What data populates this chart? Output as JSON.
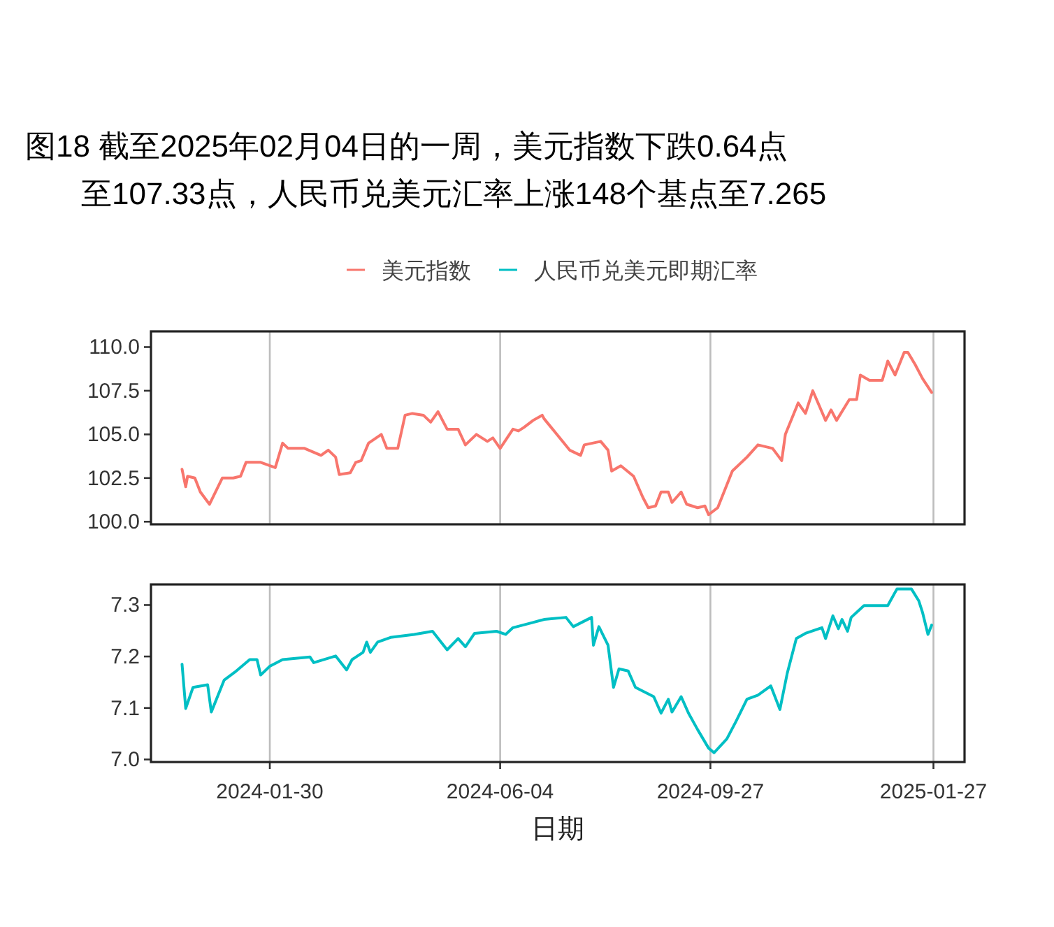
{
  "chart_data": [
    {
      "type": "line",
      "title": "图18  截至2025年02月04日的一周，美元指数下跌0.64点",
      "subtitle": "至107.33点，人民币兑美元汇率上涨148个基点至7.265",
      "legend": "top",
      "grid": "x",
      "tick_labels": "y",
      "xlim": [
        "2023-11-26",
        "2025-02-13"
      ],
      "xticks": [
        "2024-01-30",
        "2024-06-04",
        "2024-09-27",
        "2025-01-27"
      ],
      "ylim": [
        99.85,
        110.9
      ],
      "yticks": [
        {
          "value": 100,
          "label": "100.0"
        },
        102.5,
        {
          "value": 105,
          "label": "105.0"
        },
        107.5,
        {
          "value": 110,
          "label": "110.0"
        }
      ],
      "series": [
        {
          "name": "美元指数",
          "color": "#f8766d",
          "x": [
            "2023-12-13",
            "2023-12-15",
            "2023-12-16",
            "2023-12-20",
            "2023-12-23",
            "2023-12-28",
            "2024-01-04",
            "2024-01-10",
            "2024-01-14",
            "2024-01-17",
            "2024-01-25",
            "2024-02-02",
            "2024-02-06",
            "2024-02-09",
            "2024-02-18",
            "2024-02-27",
            "2024-03-02",
            "2024-03-06",
            "2024-03-08",
            "2024-03-14",
            "2024-03-17",
            "2024-03-20",
            "2024-03-24",
            "2024-03-31",
            "2024-04-03",
            "2024-04-09",
            "2024-04-13",
            "2024-04-17",
            "2024-04-23",
            "2024-04-27",
            "2024-05-01",
            "2024-05-06",
            "2024-05-12",
            "2024-05-16",
            "2024-05-22",
            "2024-05-28",
            "2024-05-31",
            "2024-06-04",
            "2024-06-11",
            "2024-06-14",
            "2024-06-17",
            "2024-06-22",
            "2024-06-27",
            "2024-06-28",
            "2024-07-05",
            "2024-07-12",
            "2024-07-18",
            "2024-07-20",
            "2024-07-29",
            "2024-08-02",
            "2024-08-04",
            "2024-08-09",
            "2024-08-16",
            "2024-08-21",
            "2024-08-24",
            "2024-08-28",
            "2024-08-31",
            "2024-09-04",
            "2024-09-06",
            "2024-09-11",
            "2024-09-14",
            "2024-09-20",
            "2024-09-24",
            "2024-09-26",
            "2024-10-01",
            "2024-10-09",
            "2024-10-17",
            "2024-10-23",
            "2024-10-31",
            "2024-11-05",
            "2024-11-07",
            "2024-11-14",
            "2024-11-18",
            "2024-11-22",
            "2024-11-29",
            "2024-12-02",
            "2024-12-05",
            "2024-12-12",
            "2024-12-16",
            "2024-12-18",
            "2024-12-23",
            "2024-12-30",
            "2025-01-02",
            "2025-01-06",
            "2025-01-11",
            "2025-01-13",
            "2025-01-17",
            "2025-01-21",
            "2025-01-26"
          ],
          "values": [
            103.0,
            102.0,
            102.6,
            102.5,
            101.7,
            101.0,
            102.5,
            102.5,
            102.6,
            103.4,
            103.4,
            103.1,
            104.5,
            104.2,
            104.2,
            103.8,
            104.1,
            103.7,
            102.7,
            102.8,
            103.4,
            103.5,
            104.5,
            105.0,
            104.2,
            104.2,
            106.1,
            106.2,
            106.1,
            105.7,
            106.3,
            105.3,
            105.3,
            104.4,
            105.0,
            104.6,
            104.8,
            104.2,
            105.3,
            105.2,
            105.4,
            105.8,
            106.1,
            105.9,
            105.0,
            104.1,
            103.8,
            104.4,
            104.6,
            104.1,
            102.9,
            103.2,
            102.6,
            101.4,
            100.8,
            100.9,
            101.7,
            101.7,
            101.1,
            101.7,
            101.0,
            100.8,
            100.9,
            100.4,
            100.8,
            102.9,
            103.7,
            104.4,
            104.2,
            103.5,
            105.0,
            106.8,
            106.2,
            107.5,
            105.8,
            106.4,
            105.8,
            107.0,
            107.0,
            108.4,
            108.1,
            108.1,
            109.2,
            108.4,
            109.7,
            109.7,
            109.0,
            108.2,
            107.4
          ]
        }
      ]
    },
    {
      "type": "line",
      "xlabel": "日期",
      "legend": "top",
      "grid": "x",
      "xlim": [
        "2023-11-26",
        "2025-02-13"
      ],
      "xticks": [
        "2024-01-30",
        "2024-06-04",
        "2024-09-27",
        "2025-01-27"
      ],
      "ylim": [
        6.995,
        7.34
      ],
      "yticks": [
        {
          "value": 7.0,
          "label": "7.0"
        },
        {
          "value": 7.1,
          "label": "7.1"
        },
        {
          "value": 7.2,
          "label": "7.2"
        },
        {
          "value": 7.3,
          "label": "7.3"
        }
      ],
      "series": [
        {
          "name": "人民币兑美元即期汇率",
          "color": "#00bfc4",
          "x": [
            "2023-12-13",
            "2023-12-15",
            "2023-12-19",
            "2023-12-27",
            "2023-12-29",
            "2024-01-05",
            "2024-01-11",
            "2024-01-19",
            "2024-01-23",
            "2024-01-25",
            "2024-01-30",
            "2024-02-06",
            "2024-02-21",
            "2024-02-23",
            "2024-03-06",
            "2024-03-12",
            "2024-03-15",
            "2024-03-21",
            "2024-03-23",
            "2024-03-25",
            "2024-03-29",
            "2024-04-05",
            "2024-04-18",
            "2024-04-28",
            "2024-05-06",
            "2024-05-12",
            "2024-05-16",
            "2024-05-21",
            "2024-06-02",
            "2024-06-07",
            "2024-06-11",
            "2024-06-26",
            "2024-06-28",
            "2024-07-10",
            "2024-07-14",
            "2024-07-24",
            "2024-07-25",
            "2024-07-28",
            "2024-08-02",
            "2024-08-05",
            "2024-08-08",
            "2024-08-13",
            "2024-08-17",
            "2024-08-27",
            "2024-08-31",
            "2024-09-04",
            "2024-09-06",
            "2024-09-11",
            "2024-09-15",
            "2024-09-20",
            "2024-09-26",
            "2024-09-29",
            "2024-10-06",
            "2024-10-11",
            "2024-10-17",
            "2024-10-23",
            "2024-10-30",
            "2024-11-04",
            "2024-11-08",
            "2024-11-13",
            "2024-11-18",
            "2024-11-27",
            "2024-11-29",
            "2024-12-03",
            "2024-12-06",
            "2024-12-08",
            "2024-12-11",
            "2024-12-13",
            "2024-12-20",
            "2025-01-02",
            "2025-01-07",
            "2025-01-15",
            "2025-01-19",
            "2025-01-21",
            "2025-01-24",
            "2025-01-26"
          ],
          "values": [
            7.185,
            7.099,
            7.14,
            7.145,
            7.092,
            7.154,
            7.17,
            7.194,
            7.194,
            7.164,
            7.181,
            7.194,
            7.199,
            7.188,
            7.201,
            7.174,
            7.194,
            7.208,
            7.228,
            7.208,
            7.228,
            7.237,
            7.243,
            7.249,
            7.213,
            7.235,
            7.219,
            7.245,
            7.249,
            7.243,
            7.256,
            7.27,
            7.272,
            7.276,
            7.258,
            7.276,
            7.222,
            7.258,
            7.222,
            7.14,
            7.176,
            7.172,
            7.14,
            7.122,
            7.09,
            7.117,
            7.092,
            7.122,
            7.09,
            7.058,
            7.022,
            7.013,
            7.04,
            7.074,
            7.117,
            7.125,
            7.143,
            7.097,
            7.167,
            7.235,
            7.245,
            7.256,
            7.235,
            7.279,
            7.254,
            7.272,
            7.249,
            7.276,
            7.299,
            7.299,
            7.331,
            7.331,
            7.308,
            7.286,
            7.243,
            7.261
          ]
        }
      ]
    }
  ]
}
